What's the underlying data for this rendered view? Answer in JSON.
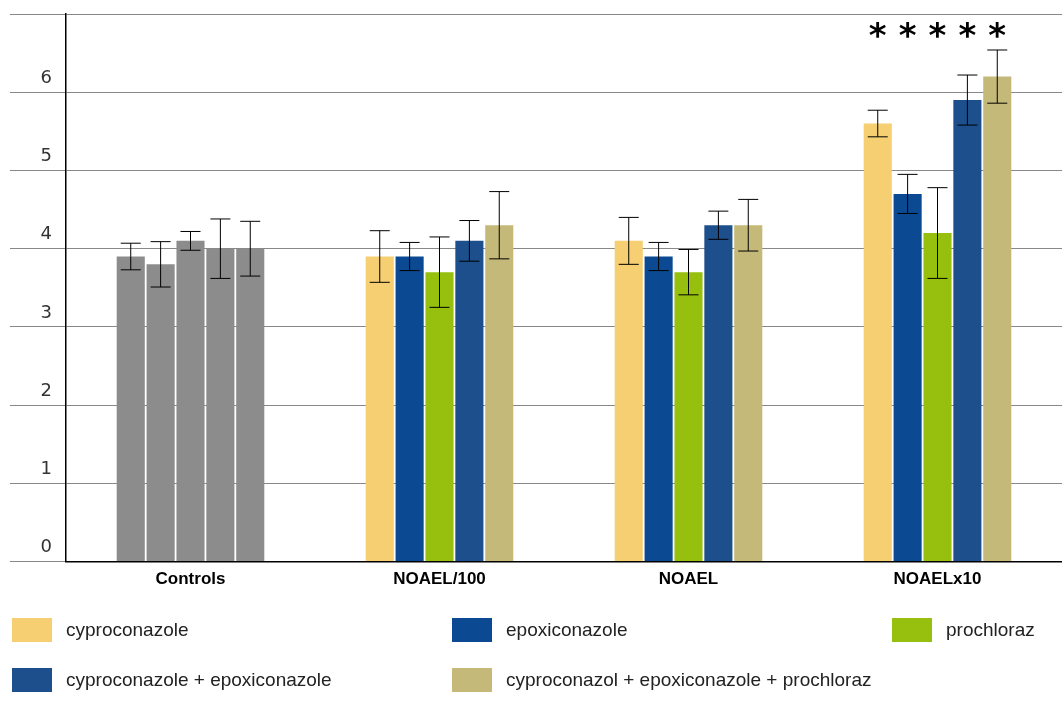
{
  "chart_data": {
    "type": "bar",
    "categories": [
      "Controls",
      "NOAEL/100",
      "NOAEL",
      "NOAELx10"
    ],
    "series": [
      {
        "name": "cyproconazole",
        "color": "#f5cf72",
        "colors": [
          "#8c8c8c",
          "#f5cf72",
          "#f5cf72",
          "#f5cf72"
        ],
        "values": [
          3.9,
          3.9,
          4.1,
          5.6
        ],
        "errors": [
          0.17,
          0.33,
          0.3,
          0.17
        ]
      },
      {
        "name": "epoxiconazole",
        "color": "#0b4a93",
        "colors": [
          "#8c8c8c",
          "#0b4a93",
          "#0b4a93",
          "#0b4a93"
        ],
        "values": [
          3.8,
          3.9,
          3.9,
          4.7
        ],
        "errors": [
          0.29,
          0.18,
          0.18,
          0.25
        ]
      },
      {
        "name": "prochloraz",
        "color": "#97bf0d",
        "colors": [
          "#8c8c8c",
          "#97bf0d",
          "#97bf0d",
          "#97bf0d"
        ],
        "values": [
          4.1,
          3.7,
          3.7,
          4.2
        ],
        "errors": [
          0.12,
          0.45,
          0.29,
          0.58
        ]
      },
      {
        "name": "cyproconazole + epoxiconazole",
        "color": "#1c4f8c",
        "colors": [
          "#8c8c8c",
          "#1c4f8c",
          "#1c4f8c",
          "#1c4f8c"
        ],
        "values": [
          4.0,
          4.1,
          4.3,
          5.9
        ],
        "errors": [
          0.38,
          0.26,
          0.18,
          0.32
        ]
      },
      {
        "name": "cyproconazol + epoxiconazole + prochloraz",
        "color": "#c4b978",
        "colors": [
          "#8c8c8c",
          "#c4b978",
          "#c4b978",
          "#c4b978"
        ],
        "values": [
          4.0,
          4.3,
          4.3,
          6.2
        ],
        "errors": [
          0.35,
          0.43,
          0.33,
          0.34
        ]
      }
    ],
    "ylim": [
      0,
      7
    ],
    "yticks": [
      0,
      1,
      2,
      3,
      4,
      5,
      6,
      {
        "value": 7,
        "label": null
      }
    ],
    "grid": "y",
    "legend": "bottom",
    "annotations": [
      "*",
      "*",
      "*",
      "*",
      "*"
    ]
  }
}
